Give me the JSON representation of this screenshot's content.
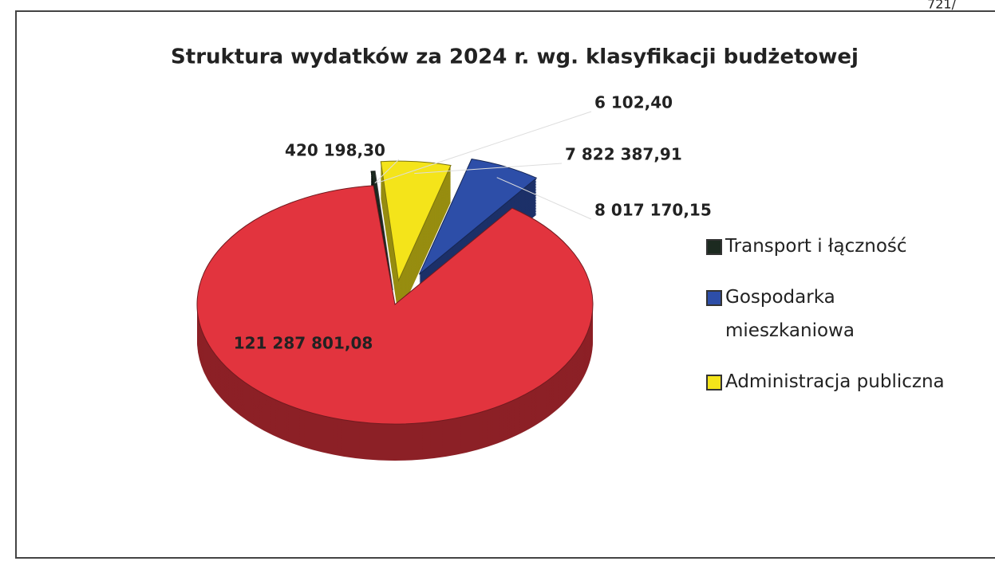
{
  "chart_data": {
    "type": "pie3d",
    "title": "Struktura wydatków za 2024 r. wg. klasyfikacji budżetowej",
    "annotation": "721/",
    "categories": [
      "Transport i łączność",
      null,
      "Gospodarka mieszkaniowa",
      "Administracja publiczna",
      null
    ],
    "values": [
      420198.3,
      121287801.08,
      8017170.15,
      7822387.91,
      6102.4
    ],
    "value_labels": [
      "420 198,30",
      "121 287 801,08",
      "8 017 170,15",
      "7 822 387,91",
      "6 102,40"
    ],
    "colors": [
      "#1c2a20",
      "#e2343e",
      "#2d4ea8",
      "#f4e41a",
      "#8a8a8a"
    ],
    "legend": "right"
  }
}
